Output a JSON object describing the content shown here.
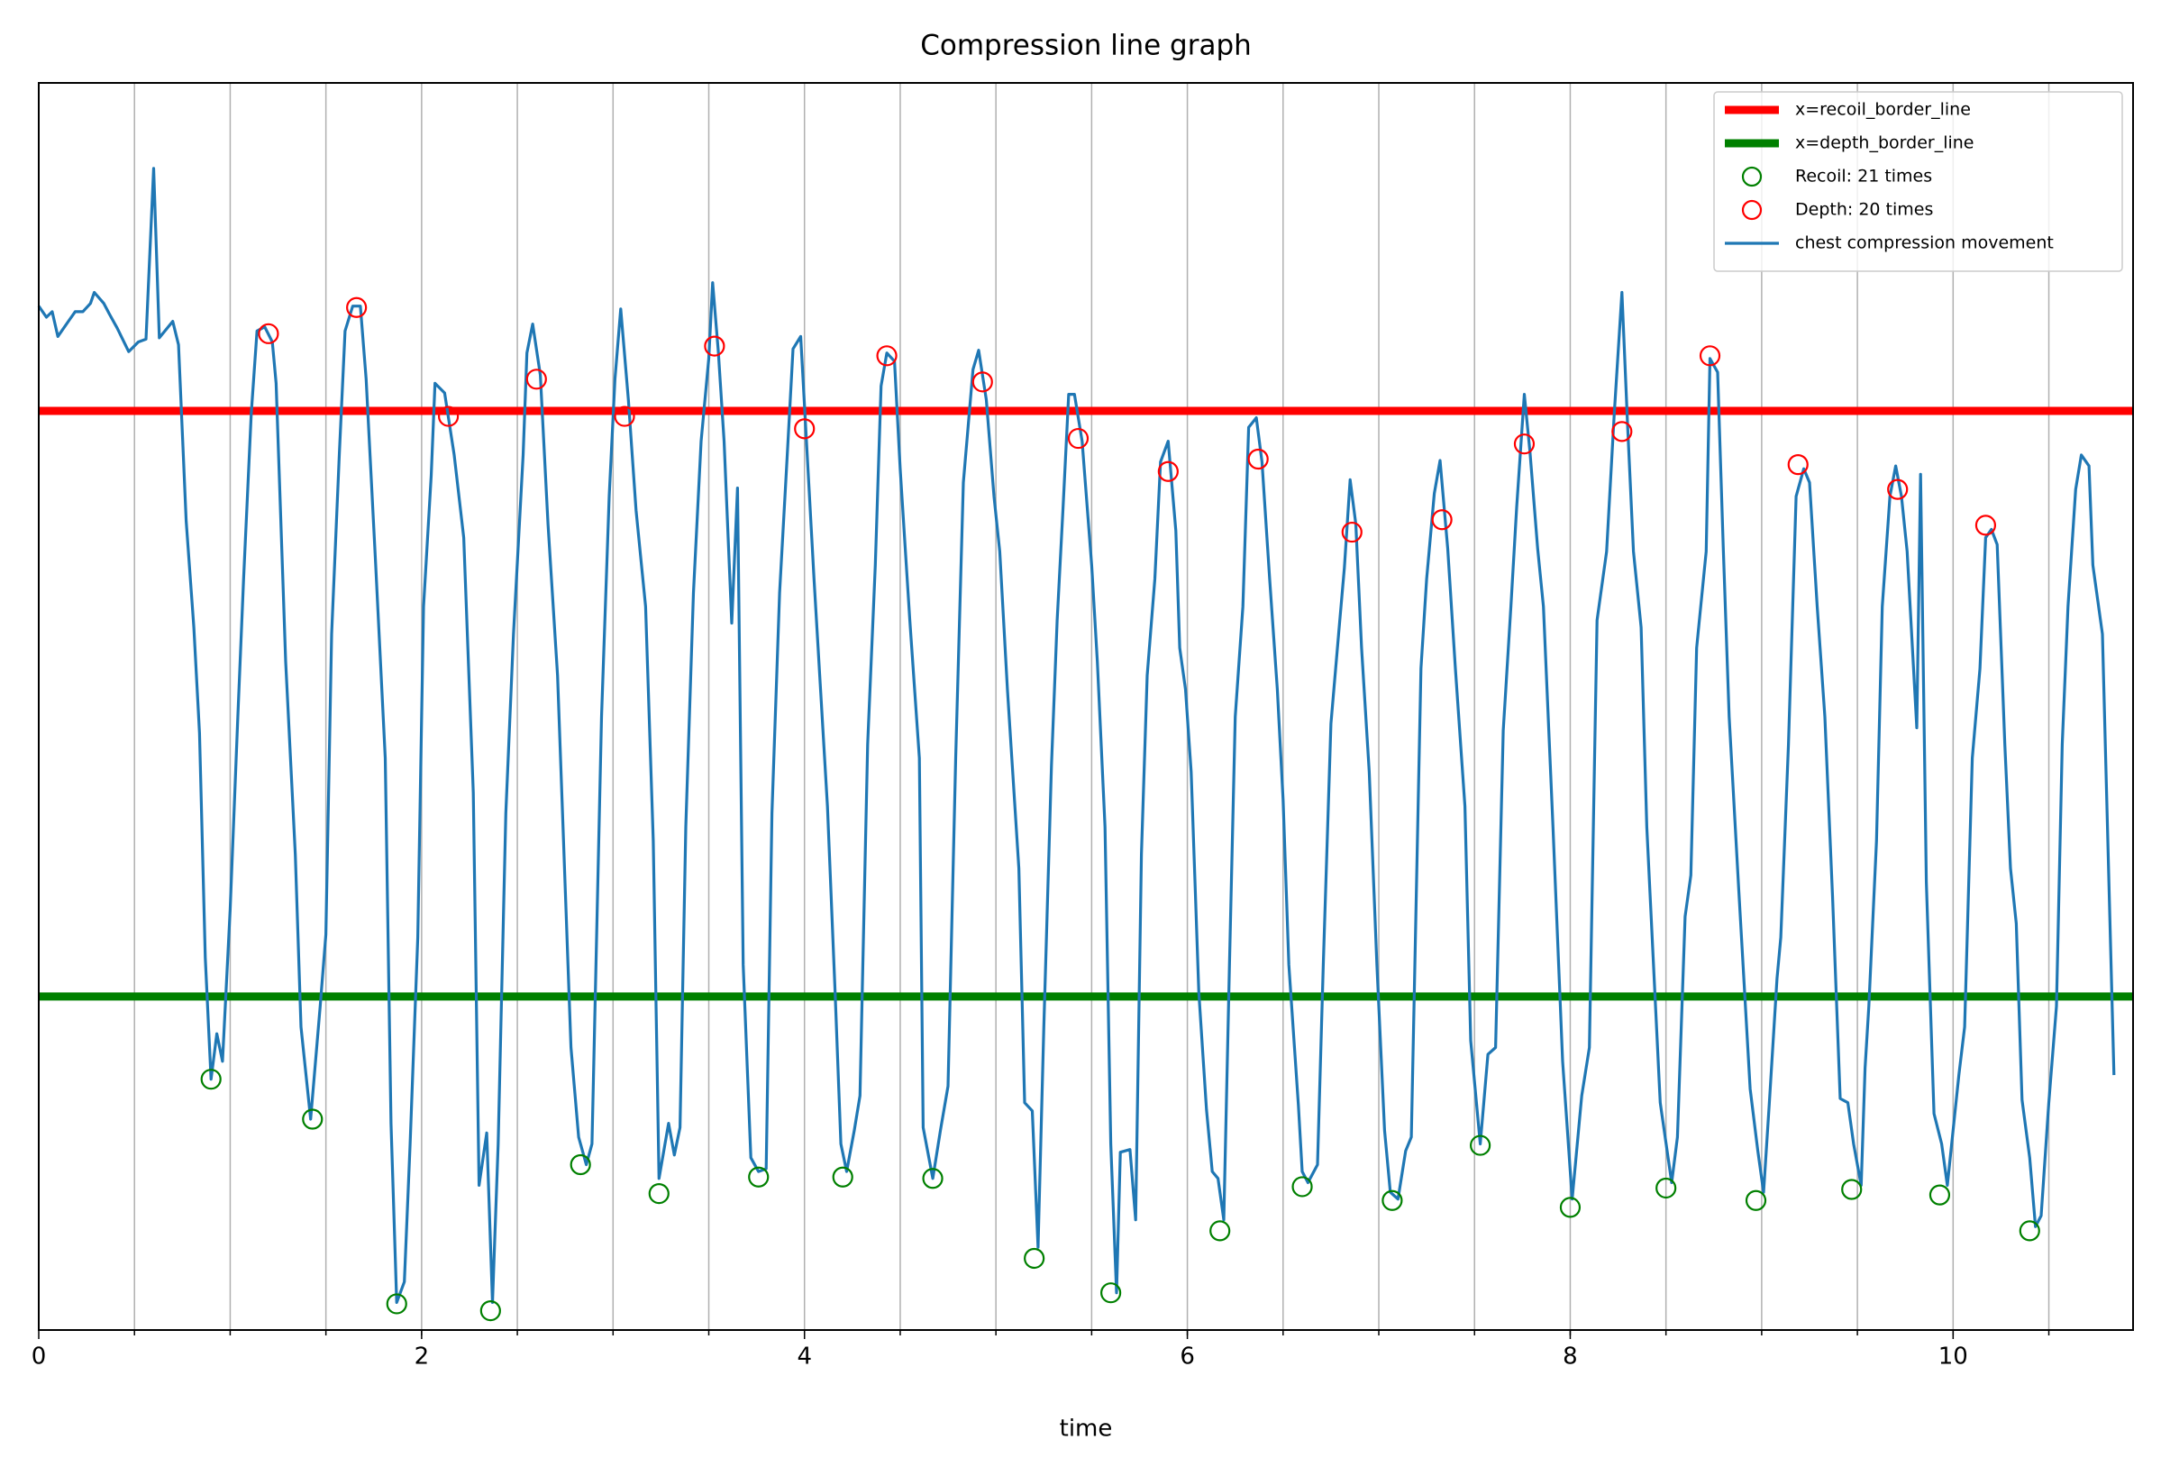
{
  "chart_data": {
    "type": "line",
    "title": "Compression line graph",
    "x_label": "time",
    "xlim": [
      0,
      10.94
    ],
    "ylim": [
      0,
      905
    ],
    "xticks": [
      0,
      2,
      4,
      6,
      8,
      10
    ],
    "xgrid": [
      0.5,
      1,
      1.5,
      2,
      2.5,
      3,
      3.5,
      4,
      4.5,
      5,
      5.5,
      6,
      6.5,
      7,
      7.5,
      8,
      8.5,
      9,
      9.5,
      10,
      10.5
    ],
    "grid": true,
    "legend_loc": "upper right",
    "series": [
      {
        "name": "x=recoil_border_line",
        "kind": "hline",
        "color": "#ff0000",
        "value": 667
      },
      {
        "name": "x=depth_border_line",
        "kind": "hline",
        "color": "#008000",
        "value": 242
      },
      {
        "name": "Recoil: 21 times",
        "kind": "scatter",
        "color": "#008000",
        "x": [
          0.9,
          1.43,
          1.87,
          2.36,
          2.83,
          3.24,
          3.76,
          4.2,
          4.67,
          5.2,
          5.6,
          6.17,
          6.6,
          7.07,
          7.53,
          8.0,
          8.5,
          8.97,
          9.47,
          9.93,
          10.4
        ],
        "y": [
          182,
          153,
          19,
          14,
          120,
          99,
          111,
          111,
          110,
          52,
          27,
          72,
          104,
          94,
          134,
          89,
          103,
          94,
          102,
          98,
          72
        ]
      },
      {
        "name": "Depth: 20 times",
        "kind": "scatter",
        "color": "#ff0000",
        "x": [
          1.2,
          1.66,
          2.14,
          2.6,
          3.06,
          3.53,
          4.0,
          4.43,
          4.93,
          5.43,
          5.9,
          6.37,
          6.86,
          7.33,
          7.76,
          8.27,
          8.73,
          9.19,
          9.71,
          10.17
        ],
        "y": [
          723,
          742,
          663,
          690,
          663,
          714,
          654,
          707,
          688,
          647,
          623,
          632,
          579,
          588,
          643,
          652,
          707,
          628,
          610,
          584
        ]
      },
      {
        "name": "chest compression movement",
        "kind": "line",
        "color": "#1f77b4",
        "x": [
          0.0,
          0.04,
          0.07,
          0.1,
          0.16,
          0.19,
          0.23,
          0.27,
          0.29,
          0.34,
          0.37,
          0.41,
          0.47,
          0.52,
          0.56,
          0.6,
          0.63,
          0.7,
          0.73,
          0.77,
          0.81,
          0.84,
          0.87,
          0.9,
          0.93,
          0.96,
          1.0,
          1.04,
          1.07,
          1.11,
          1.14,
          1.18,
          1.22,
          1.24,
          1.29,
          1.34,
          1.37,
          1.42,
          1.47,
          1.5,
          1.53,
          1.57,
          1.6,
          1.64,
          1.68,
          1.71,
          1.76,
          1.81,
          1.84,
          1.87,
          1.91,
          1.94,
          1.98,
          2.01,
          2.05,
          2.07,
          2.12,
          2.17,
          2.22,
          2.27,
          2.3,
          2.34,
          2.37,
          2.4,
          2.44,
          2.48,
          2.53,
          2.55,
          2.58,
          2.62,
          2.66,
          2.71,
          2.78,
          2.82,
          2.86,
          2.89,
          2.94,
          2.98,
          3.01,
          3.04,
          3.08,
          3.12,
          3.17,
          3.21,
          3.24,
          3.29,
          3.32,
          3.35,
          3.38,
          3.42,
          3.46,
          3.5,
          3.52,
          3.55,
          3.58,
          3.62,
          3.65,
          3.68,
          3.72,
          3.76,
          3.8,
          3.83,
          3.87,
          3.91,
          3.94,
          3.98,
          4.01,
          4.05,
          4.12,
          4.16,
          4.19,
          4.22,
          4.26,
          4.29,
          4.33,
          4.37,
          4.4,
          4.43,
          4.47,
          4.5,
          4.55,
          4.6,
          4.62,
          4.67,
          4.71,
          4.75,
          4.79,
          4.83,
          4.88,
          4.91,
          4.95,
          4.99,
          5.02,
          5.06,
          5.12,
          5.15,
          5.19,
          5.22,
          5.25,
          5.29,
          5.32,
          5.35,
          5.38,
          5.41,
          5.45,
          5.5,
          5.53,
          5.57,
          5.6,
          5.63,
          5.65,
          5.7,
          5.73,
          5.76,
          5.79,
          5.83,
          5.86,
          5.9,
          5.94,
          5.96,
          5.99,
          6.02,
          6.06,
          6.1,
          6.13,
          6.16,
          6.19,
          6.22,
          6.25,
          6.29,
          6.32,
          6.36,
          6.39,
          6.43,
          6.47,
          6.5,
          6.53,
          6.58,
          6.6,
          6.63,
          6.68,
          6.71,
          6.75,
          6.79,
          6.82,
          6.85,
          6.88,
          6.91,
          6.95,
          6.99,
          7.03,
          7.06,
          7.1,
          7.14,
          7.17,
          7.22,
          7.25,
          7.29,
          7.32,
          7.36,
          7.4,
          7.45,
          7.48,
          7.53,
          7.57,
          7.61,
          7.65,
          7.69,
          7.72,
          7.76,
          7.79,
          7.83,
          7.86,
          7.91,
          7.96,
          8.01,
          8.06,
          8.1,
          8.14,
          8.19,
          8.23,
          8.27,
          8.3,
          8.33,
          8.37,
          8.4,
          8.47,
          8.53,
          8.56,
          8.6,
          8.63,
          8.66,
          8.71,
          8.73,
          8.77,
          8.8,
          8.83,
          8.88,
          8.94,
          8.98,
          9.01,
          9.04,
          9.08,
          9.1,
          9.14,
          9.18,
          9.22,
          9.25,
          9.29,
          9.33,
          9.37,
          9.41,
          9.45,
          9.48,
          9.52,
          9.54,
          9.56,
          9.6,
          9.63,
          9.67,
          9.7,
          9.73,
          9.76,
          9.81,
          9.83,
          9.86,
          9.9,
          9.94,
          9.97,
          10.0,
          10.03,
          10.06,
          10.1,
          10.14,
          10.17,
          10.2,
          10.23,
          10.27,
          10.3,
          10.33,
          10.36,
          10.4,
          10.43,
          10.46,
          10.5,
          10.54,
          10.57,
          10.6,
          10.64,
          10.67,
          10.71,
          10.73,
          10.78,
          10.84
        ],
        "y": [
          743,
          735,
          739,
          721,
          733,
          739,
          739,
          745,
          753,
          745,
          737,
          727,
          710,
          717,
          719,
          843,
          720,
          732,
          715,
          587,
          510,
          433,
          270,
          182,
          215,
          195,
          305,
          445,
          545,
          665,
          725,
          728,
          717,
          687,
          485,
          345,
          220,
          153,
          235,
          287,
          505,
          635,
          725,
          743,
          743,
          690,
          555,
          415,
          150,
          20,
          35,
          135,
          285,
          525,
          620,
          687,
          680,
          635,
          575,
          390,
          105,
          143,
          20,
          135,
          375,
          505,
          635,
          709,
          730,
          693,
          585,
          475,
          205,
          140,
          120,
          135,
          445,
          605,
          690,
          741,
          675,
          595,
          525,
          355,
          110,
          150,
          127,
          147,
          365,
          535,
          645,
          705,
          760,
          710,
          645,
          513,
          611,
          265,
          125,
          115,
          117,
          375,
          535,
          635,
          712,
          721,
          645,
          545,
          380,
          245,
          135,
          115,
          145,
          170,
          425,
          555,
          685,
          709,
          703,
          625,
          515,
          415,
          147,
          110,
          145,
          177,
          415,
          615,
          697,
          711,
          675,
          605,
          565,
          465,
          335,
          165,
          159,
          60,
          220,
          410,
          515,
          595,
          679,
          679,
          645,
          555,
          485,
          365,
          135,
          27,
          129,
          131,
          80,
          345,
          475,
          545,
          630,
          645,
          580,
          495,
          465,
          405,
          245,
          160,
          115,
          110,
          80,
          265,
          445,
          525,
          655,
          662,
          630,
          545,
          465,
          385,
          265,
          163,
          115,
          107,
          120,
          265,
          440,
          505,
          553,
          617,
          585,
          495,
          405,
          265,
          145,
          100,
          95,
          130,
          140,
          480,
          545,
          607,
          631,
          567,
          480,
          380,
          210,
          135,
          200,
          205,
          435,
          525,
          597,
          679,
          637,
          567,
          525,
          365,
          195,
          95,
          170,
          205,
          515,
          565,
          665,
          753,
          655,
          565,
          510,
          365,
          165,
          107,
          140,
          300,
          330,
          495,
          565,
          705,
          695,
          565,
          445,
          320,
          175,
          130,
          100,
          165,
          255,
          285,
          425,
          605,
          625,
          615,
          525,
          445,
          315,
          168,
          165,
          135,
          105,
          190,
          235,
          355,
          525,
          605,
          627,
          605,
          565,
          437,
          621,
          325,
          157,
          135,
          105,
          145,
          185,
          220,
          415,
          480,
          575,
          581,
          570,
          425,
          335,
          295,
          167,
          125,
          75,
          83,
          165,
          235,
          425,
          525,
          610,
          635,
          627,
          555,
          505,
          185
        ]
      }
    ]
  }
}
